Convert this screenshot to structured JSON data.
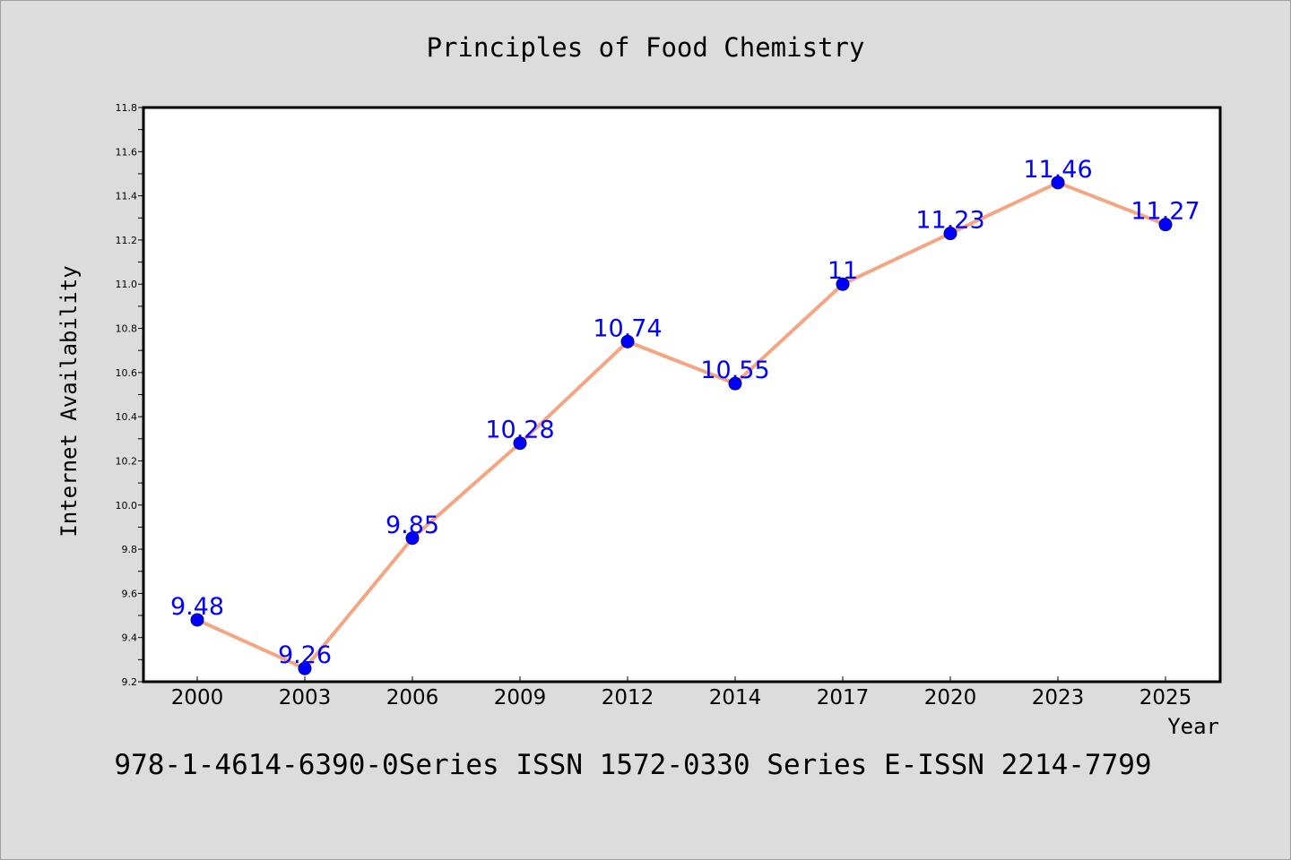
{
  "chart_data": {
    "type": "line",
    "title": "Principles of Food Chemistry",
    "xlabel": "Year",
    "ylabel": "Internet Availability",
    "categories": [
      "2000",
      "2003",
      "2006",
      "2009",
      "2012",
      "2014",
      "2017",
      "2020",
      "2023",
      "2025"
    ],
    "series": [
      {
        "values": [
          9.48,
          9.26,
          9.85,
          10.28,
          10.74,
          10.55,
          11,
          11.23,
          11.46,
          11.27
        ],
        "data_labels": [
          "9.48",
          "9.26",
          "9.85",
          "10.28",
          "10.74",
          "10.55",
          "11",
          "11.23",
          "11.46",
          "11.27"
        ]
      }
    ],
    "ylim": [
      9.2,
      11.8
    ],
    "yticks": [
      "9.2",
      "9.4",
      "9.6",
      "9.8",
      "10.0",
      "10.2",
      "10.4",
      "10.6",
      "10.8",
      "11.0",
      "11.2",
      "11.4",
      "11.6",
      "11.8"
    ],
    "grid": false,
    "colors": {
      "line": "#f4a582",
      "marker": "#0000ff",
      "marker_edge": "#000080",
      "data_label": "#0000ff",
      "background": "#dcdcdc",
      "plot_background": "#ffffff"
    }
  },
  "footer_text": "978-1-4614-6390-0Series ISSN 1572-0330 Series E-ISSN 2214-7799"
}
